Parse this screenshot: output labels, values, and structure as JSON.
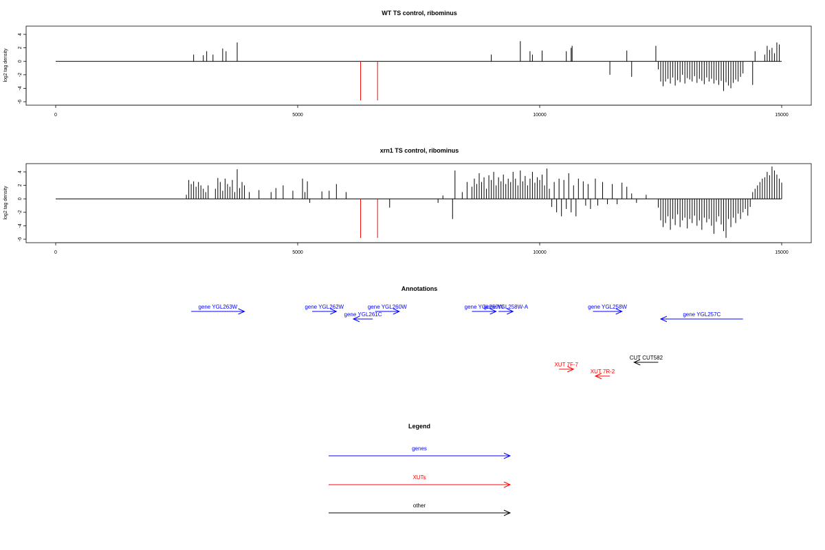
{
  "colors": {
    "gene": "#0000ff",
    "xut": "#ff0000",
    "other": "#000000",
    "default_bar": "#000000"
  },
  "chart_data": [
    {
      "type": "bar",
      "title": "WT TS control, ribominus",
      "ylabel": "log2 tag density",
      "xlim": [
        0,
        15000
      ],
      "ylim": [
        -6,
        5
      ],
      "xticks": [
        0,
        5000,
        10000,
        15000
      ],
      "yticks": [
        -6,
        -4,
        -2,
        0,
        2,
        4
      ],
      "baseline": {
        "from": 0,
        "to": 15000
      },
      "bars": [
        [
          2850,
          1.0,
          "black"
        ],
        [
          3050,
          0.9,
          "black"
        ],
        [
          3120,
          1.5,
          "black"
        ],
        [
          3250,
          1.0,
          "black"
        ],
        [
          3450,
          1.9,
          "black"
        ],
        [
          3520,
          1.5,
          "black"
        ],
        [
          3750,
          2.8,
          "black"
        ],
        [
          6300,
          -5.8,
          "red"
        ],
        [
          6650,
          -5.8,
          "red"
        ],
        [
          9000,
          1.0,
          "black"
        ],
        [
          9600,
          3.0,
          "black"
        ],
        [
          9800,
          1.5,
          "black"
        ],
        [
          9850,
          1.0,
          "black"
        ],
        [
          10050,
          1.6,
          "black"
        ],
        [
          10550,
          1.5,
          "black"
        ],
        [
          10650,
          2.0,
          "black"
        ],
        [
          10670,
          2.3,
          "black"
        ],
        [
          11450,
          -2.0,
          "black"
        ],
        [
          11800,
          1.6,
          "black"
        ],
        [
          11900,
          -2.3,
          "black"
        ],
        [
          12400,
          2.3,
          "black"
        ],
        [
          12450,
          -1.2,
          "black"
        ],
        [
          12500,
          -3.0,
          "black"
        ],
        [
          12550,
          -3.7,
          "black"
        ],
        [
          12600,
          -3.0,
          "black"
        ],
        [
          12650,
          -2.6,
          "black"
        ],
        [
          12700,
          -3.3,
          "black"
        ],
        [
          12750,
          -2.4,
          "black"
        ],
        [
          12800,
          -3.6,
          "black"
        ],
        [
          12850,
          -2.8,
          "black"
        ],
        [
          12900,
          -3.1,
          "black"
        ],
        [
          12950,
          -2.0,
          "black"
        ],
        [
          13000,
          -3.3,
          "black"
        ],
        [
          13050,
          -2.5,
          "black"
        ],
        [
          13100,
          -2.7,
          "black"
        ],
        [
          13150,
          -3.0,
          "black"
        ],
        [
          13200,
          -2.2,
          "black"
        ],
        [
          13250,
          -3.2,
          "black"
        ],
        [
          13300,
          -2.6,
          "black"
        ],
        [
          13350,
          -2.9,
          "black"
        ],
        [
          13400,
          -3.4,
          "black"
        ],
        [
          13450,
          -2.4,
          "black"
        ],
        [
          13500,
          -3.0,
          "black"
        ],
        [
          13550,
          -2.6,
          "black"
        ],
        [
          13600,
          -3.3,
          "black"
        ],
        [
          13650,
          -2.8,
          "black"
        ],
        [
          13700,
          -3.5,
          "black"
        ],
        [
          13750,
          -2.9,
          "black"
        ],
        [
          13800,
          -4.4,
          "black"
        ],
        [
          13850,
          -3.1,
          "black"
        ],
        [
          13900,
          -3.6,
          "black"
        ],
        [
          13950,
          -4.0,
          "black"
        ],
        [
          14000,
          -3.2,
          "black"
        ],
        [
          14050,
          -2.7,
          "black"
        ],
        [
          14100,
          -3.0,
          "black"
        ],
        [
          14150,
          -2.3,
          "black"
        ],
        [
          14200,
          -1.8,
          "black"
        ],
        [
          14400,
          -3.5,
          "black"
        ],
        [
          14450,
          1.5,
          "black"
        ],
        [
          14650,
          1.0,
          "black"
        ],
        [
          14700,
          2.3,
          "black"
        ],
        [
          14750,
          1.7,
          "black"
        ],
        [
          14800,
          2.0,
          "black"
        ],
        [
          14850,
          1.2,
          "black"
        ],
        [
          14900,
          2.8,
          "black"
        ],
        [
          14950,
          2.5,
          "black"
        ]
      ]
    },
    {
      "type": "bar",
      "title": "xrn1 TS control, ribominus",
      "ylabel": "log2 tag density",
      "xlim": [
        0,
        15000
      ],
      "ylim": [
        -6,
        5
      ],
      "xticks": [
        0,
        5000,
        10000,
        15000
      ],
      "yticks": [
        -6,
        -4,
        -2,
        0,
        2,
        4
      ],
      "baseline": {
        "from": 0,
        "to": 15000
      },
      "bars": [
        [
          2700,
          0.6,
          "black"
        ],
        [
          2750,
          2.8,
          "black"
        ],
        [
          2800,
          2.2,
          "black"
        ],
        [
          2850,
          2.6,
          "black"
        ],
        [
          2900,
          1.8,
          "black"
        ],
        [
          2950,
          2.5,
          "black"
        ],
        [
          3000,
          2.0,
          "black"
        ],
        [
          3050,
          1.5,
          "black"
        ],
        [
          3100,
          1.0,
          "black"
        ],
        [
          3150,
          2.0,
          "black"
        ],
        [
          3300,
          1.5,
          "black"
        ],
        [
          3350,
          3.1,
          "black"
        ],
        [
          3400,
          2.5,
          "black"
        ],
        [
          3450,
          1.2,
          "black"
        ],
        [
          3500,
          3.0,
          "black"
        ],
        [
          3550,
          2.2,
          "black"
        ],
        [
          3600,
          1.8,
          "black"
        ],
        [
          3650,
          2.8,
          "black"
        ],
        [
          3700,
          1.0,
          "black"
        ],
        [
          3750,
          4.4,
          "black"
        ],
        [
          3800,
          1.6,
          "black"
        ],
        [
          3850,
          2.5,
          "black"
        ],
        [
          3900,
          2.0,
          "black"
        ],
        [
          4000,
          1.0,
          "black"
        ],
        [
          4200,
          1.3,
          "black"
        ],
        [
          4450,
          1.0,
          "black"
        ],
        [
          4550,
          1.6,
          "black"
        ],
        [
          4700,
          2.0,
          "black"
        ],
        [
          4900,
          1.2,
          "black"
        ],
        [
          5100,
          3.0,
          "black"
        ],
        [
          5150,
          1.0,
          "black"
        ],
        [
          5200,
          2.6,
          "black"
        ],
        [
          5250,
          -0.6,
          "black"
        ],
        [
          5500,
          1.1,
          "black"
        ],
        [
          5650,
          1.2,
          "black"
        ],
        [
          5800,
          2.2,
          "black"
        ],
        [
          6000,
          1.0,
          "black"
        ],
        [
          6300,
          -5.8,
          "red"
        ],
        [
          6650,
          -5.8,
          "red"
        ],
        [
          6900,
          -1.3,
          "black"
        ],
        [
          7900,
          -0.6,
          "black"
        ],
        [
          8000,
          0.5,
          "black"
        ],
        [
          8200,
          -3.0,
          "black"
        ],
        [
          8250,
          4.2,
          "black"
        ],
        [
          8400,
          1.0,
          "black"
        ],
        [
          8500,
          2.5,
          "black"
        ],
        [
          8600,
          1.8,
          "black"
        ],
        [
          8650,
          3.0,
          "black"
        ],
        [
          8700,
          2.2,
          "black"
        ],
        [
          8750,
          3.8,
          "black"
        ],
        [
          8800,
          2.5,
          "black"
        ],
        [
          8850,
          3.2,
          "black"
        ],
        [
          8900,
          1.5,
          "black"
        ],
        [
          8950,
          3.5,
          "black"
        ],
        [
          9000,
          2.8,
          "black"
        ],
        [
          9050,
          4.0,
          "black"
        ],
        [
          9100,
          2.0,
          "black"
        ],
        [
          9150,
          3.2,
          "black"
        ],
        [
          9200,
          2.6,
          "black"
        ],
        [
          9250,
          3.6,
          "black"
        ],
        [
          9300,
          2.2,
          "black"
        ],
        [
          9350,
          3.0,
          "black"
        ],
        [
          9400,
          2.5,
          "black"
        ],
        [
          9450,
          4.0,
          "black"
        ],
        [
          9500,
          3.0,
          "black"
        ],
        [
          9550,
          2.0,
          "black"
        ],
        [
          9600,
          4.2,
          "black"
        ],
        [
          9650,
          2.6,
          "black"
        ],
        [
          9700,
          3.4,
          "black"
        ],
        [
          9750,
          2.0,
          "black"
        ],
        [
          9800,
          3.0,
          "black"
        ],
        [
          9850,
          4.0,
          "black"
        ],
        [
          9900,
          2.4,
          "black"
        ],
        [
          9950,
          3.2,
          "black"
        ],
        [
          10000,
          2.8,
          "black"
        ],
        [
          10050,
          3.6,
          "black"
        ],
        [
          10100,
          2.0,
          "black"
        ],
        [
          10150,
          4.5,
          "black"
        ],
        [
          10200,
          1.5,
          "black"
        ],
        [
          10250,
          -1.2,
          "black"
        ],
        [
          10300,
          2.5,
          "black"
        ],
        [
          10350,
          -2.0,
          "black"
        ],
        [
          10400,
          3.0,
          "black"
        ],
        [
          10450,
          -2.6,
          "black"
        ],
        [
          10500,
          2.8,
          "black"
        ],
        [
          10550,
          -1.5,
          "black"
        ],
        [
          10600,
          3.8,
          "black"
        ],
        [
          10650,
          -2.0,
          "black"
        ],
        [
          10700,
          2.0,
          "black"
        ],
        [
          10750,
          -2.6,
          "black"
        ],
        [
          10800,
          3.0,
          "black"
        ],
        [
          10900,
          2.6,
          "black"
        ],
        [
          10950,
          -1.0,
          "black"
        ],
        [
          11000,
          2.2,
          "black"
        ],
        [
          11050,
          -1.5,
          "black"
        ],
        [
          11150,
          3.0,
          "black"
        ],
        [
          11200,
          -1.0,
          "black"
        ],
        [
          11300,
          2.5,
          "black"
        ],
        [
          11400,
          -0.8,
          "black"
        ],
        [
          11500,
          2.2,
          "black"
        ],
        [
          11600,
          -0.8,
          "black"
        ],
        [
          11700,
          2.4,
          "black"
        ],
        [
          11800,
          1.8,
          "black"
        ],
        [
          11900,
          0.8,
          "black"
        ],
        [
          12000,
          -0.6,
          "black"
        ],
        [
          12200,
          0.6,
          "black"
        ],
        [
          12450,
          -1.3,
          "black"
        ],
        [
          12500,
          -3.2,
          "black"
        ],
        [
          12550,
          -4.2,
          "black"
        ],
        [
          12600,
          -3.6,
          "black"
        ],
        [
          12650,
          -2.6,
          "black"
        ],
        [
          12700,
          -4.6,
          "black"
        ],
        [
          12750,
          -3.0,
          "black"
        ],
        [
          12800,
          -3.9,
          "black"
        ],
        [
          12850,
          -2.3,
          "black"
        ],
        [
          12900,
          -4.2,
          "black"
        ],
        [
          12950,
          -3.2,
          "black"
        ],
        [
          13000,
          -2.8,
          "black"
        ],
        [
          13050,
          -4.4,
          "black"
        ],
        [
          13100,
          -3.0,
          "black"
        ],
        [
          13150,
          -3.6,
          "black"
        ],
        [
          13200,
          -2.5,
          "black"
        ],
        [
          13250,
          -4.0,
          "black"
        ],
        [
          13300,
          -3.2,
          "black"
        ],
        [
          13350,
          -4.6,
          "black"
        ],
        [
          13400,
          -2.8,
          "black"
        ],
        [
          13450,
          -3.5,
          "black"
        ],
        [
          13500,
          -3.0,
          "black"
        ],
        [
          13550,
          -4.0,
          "black"
        ],
        [
          13600,
          -5.2,
          "black"
        ],
        [
          13650,
          -3.4,
          "black"
        ],
        [
          13700,
          -2.6,
          "black"
        ],
        [
          13750,
          -3.8,
          "black"
        ],
        [
          13800,
          -4.8,
          "black"
        ],
        [
          13850,
          -5.8,
          "black"
        ],
        [
          13900,
          -3.0,
          "black"
        ],
        [
          13950,
          -4.2,
          "black"
        ],
        [
          14000,
          -2.8,
          "black"
        ],
        [
          14050,
          -3.6,
          "black"
        ],
        [
          14100,
          -2.2,
          "black"
        ],
        [
          14150,
          -3.0,
          "black"
        ],
        [
          14200,
          -2.0,
          "black"
        ],
        [
          14250,
          -1.5,
          "black"
        ],
        [
          14300,
          -2.5,
          "black"
        ],
        [
          14350,
          -1.2,
          "black"
        ],
        [
          14400,
          1.0,
          "black"
        ],
        [
          14450,
          1.5,
          "black"
        ],
        [
          14500,
          2.0,
          "black"
        ],
        [
          14550,
          2.5,
          "black"
        ],
        [
          14600,
          3.0,
          "black"
        ],
        [
          14650,
          3.2,
          "black"
        ],
        [
          14700,
          4.0,
          "black"
        ],
        [
          14750,
          3.5,
          "black"
        ],
        [
          14800,
          4.8,
          "black"
        ],
        [
          14850,
          4.2,
          "black"
        ],
        [
          14900,
          3.6,
          "black"
        ],
        [
          14950,
          3.0,
          "black"
        ],
        [
          15000,
          2.4,
          "black"
        ]
      ]
    }
  ],
  "annotations": {
    "title": "Annotations",
    "xlim": [
      0,
      15000
    ],
    "items": [
      {
        "label": "gene YGL263W",
        "start": 2800,
        "end": 3900,
        "strand": "+",
        "kind": "gene",
        "row": 0
      },
      {
        "label": "gene YGL262W",
        "start": 5300,
        "end": 5800,
        "strand": "+",
        "kind": "gene",
        "row": 0
      },
      {
        "label": "gene YGL261C",
        "start": 6150,
        "end": 6550,
        "strand": "-",
        "kind": "gene",
        "row": 1
      },
      {
        "label": "gene YGL260W",
        "start": 6600,
        "end": 7100,
        "strand": "+",
        "kind": "gene",
        "row": 0
      },
      {
        "label": "gene YGL259W",
        "start": 8600,
        "end": 9100,
        "strand": "+",
        "kind": "gene",
        "row": 0
      },
      {
        "label": "gene YGL258W-A",
        "start": 9150,
        "end": 9450,
        "strand": "+",
        "kind": "gene",
        "row": 0
      },
      {
        "label": "gene YGL258W",
        "start": 11100,
        "end": 11700,
        "strand": "+",
        "kind": "gene",
        "row": 0
      },
      {
        "label": "gene YGL257C",
        "start": 12500,
        "end": 14200,
        "strand": "-",
        "kind": "gene",
        "row": 1
      },
      {
        "label": "CUT CUT582",
        "start": 11950,
        "end": 12450,
        "strand": "-",
        "kind": "other",
        "row": 4
      },
      {
        "label": "XUT 7F-7",
        "start": 10400,
        "end": 10700,
        "strand": "+",
        "kind": "xut",
        "row": 5
      },
      {
        "label": "XUT 7R-2",
        "start": 11150,
        "end": 11450,
        "strand": "-",
        "kind": "xut",
        "row": 6
      }
    ]
  },
  "legend": {
    "title": "Legend",
    "items": [
      {
        "label": "genes",
        "kind": "gene"
      },
      {
        "label": "XUTs",
        "kind": "xut"
      },
      {
        "label": "other",
        "kind": "other"
      }
    ]
  }
}
